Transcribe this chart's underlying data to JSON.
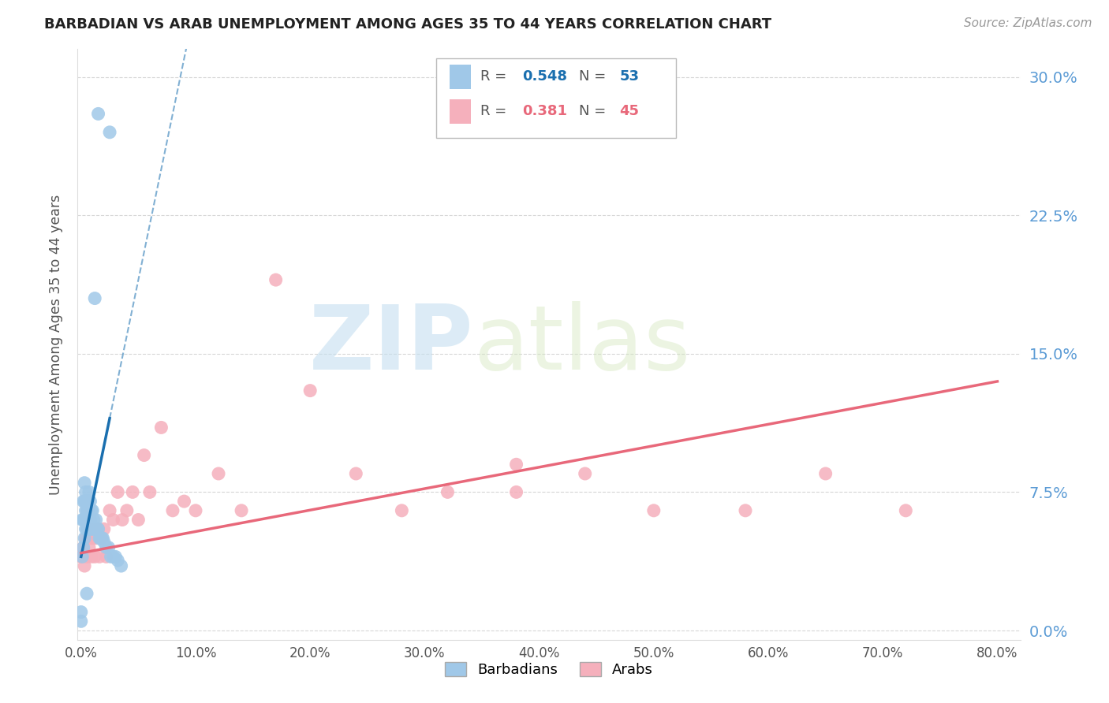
{
  "title": "BARBADIAN VS ARAB UNEMPLOYMENT AMONG AGES 35 TO 44 YEARS CORRELATION CHART",
  "source": "Source: ZipAtlas.com",
  "ylabel": "Unemployment Among Ages 35 to 44 years",
  "xlim": [
    -0.003,
    0.82
  ],
  "ylim": [
    -0.005,
    0.315
  ],
  "yticks": [
    0.0,
    0.075,
    0.15,
    0.225,
    0.3
  ],
  "ytick_labels": [
    "0.0%",
    "7.5%",
    "15.0%",
    "22.5%",
    "30.0%"
  ],
  "xticks": [
    0.0,
    0.1,
    0.2,
    0.3,
    0.4,
    0.5,
    0.6,
    0.7,
    0.8
  ],
  "xtick_labels": [
    "0.0%",
    "10.0%",
    "20.0%",
    "30.0%",
    "40.0%",
    "50.0%",
    "60.0%",
    "70.0%",
    "80.0%"
  ],
  "barbadian_color": "#a0c8e8",
  "arab_color": "#f5b0bc",
  "barbadian_trend_color": "#1a6faf",
  "arab_trend_color": "#e8687a",
  "R_barbadian": 0.548,
  "N_barbadian": 53,
  "R_arab": 0.381,
  "N_arab": 45,
  "watermark_zip": "ZIP",
  "watermark_atlas": "atlas",
  "background": "#ffffff",
  "barbadian_x": [
    0.0,
    0.0,
    0.001,
    0.001,
    0.002,
    0.002,
    0.002,
    0.003,
    0.003,
    0.003,
    0.003,
    0.004,
    0.004,
    0.004,
    0.004,
    0.005,
    0.005,
    0.005,
    0.005,
    0.006,
    0.006,
    0.006,
    0.006,
    0.007,
    0.007,
    0.007,
    0.008,
    0.008,
    0.009,
    0.009,
    0.01,
    0.01,
    0.011,
    0.012,
    0.013,
    0.014,
    0.015,
    0.016,
    0.017,
    0.018,
    0.019,
    0.02,
    0.022,
    0.024,
    0.026,
    0.028,
    0.03,
    0.032,
    0.035,
    0.012,
    0.015,
    0.025,
    0.005
  ],
  "barbadian_y": [
    0.005,
    0.01,
    0.04,
    0.06,
    0.045,
    0.06,
    0.07,
    0.05,
    0.06,
    0.07,
    0.08,
    0.055,
    0.065,
    0.07,
    0.075,
    0.055,
    0.06,
    0.065,
    0.07,
    0.055,
    0.06,
    0.065,
    0.07,
    0.055,
    0.06,
    0.075,
    0.06,
    0.07,
    0.055,
    0.065,
    0.055,
    0.065,
    0.06,
    0.055,
    0.06,
    0.055,
    0.055,
    0.05,
    0.05,
    0.05,
    0.05,
    0.048,
    0.045,
    0.045,
    0.04,
    0.04,
    0.04,
    0.038,
    0.035,
    0.18,
    0.28,
    0.27,
    0.02
  ],
  "arab_x": [
    0.0,
    0.002,
    0.003,
    0.004,
    0.005,
    0.006,
    0.007,
    0.008,
    0.009,
    0.01,
    0.011,
    0.012,
    0.013,
    0.015,
    0.016,
    0.018,
    0.02,
    0.022,
    0.025,
    0.028,
    0.032,
    0.036,
    0.04,
    0.045,
    0.05,
    0.055,
    0.06,
    0.07,
    0.08,
    0.09,
    0.1,
    0.12,
    0.14,
    0.17,
    0.2,
    0.24,
    0.28,
    0.32,
    0.38,
    0.44,
    0.5,
    0.58,
    0.65,
    0.72,
    0.38
  ],
  "arab_y": [
    0.04,
    0.045,
    0.035,
    0.05,
    0.04,
    0.05,
    0.045,
    0.055,
    0.04,
    0.05,
    0.055,
    0.04,
    0.05,
    0.055,
    0.04,
    0.05,
    0.055,
    0.04,
    0.065,
    0.06,
    0.075,
    0.06,
    0.065,
    0.075,
    0.06,
    0.095,
    0.075,
    0.11,
    0.065,
    0.07,
    0.065,
    0.085,
    0.065,
    0.19,
    0.13,
    0.085,
    0.065,
    0.075,
    0.075,
    0.085,
    0.065,
    0.065,
    0.085,
    0.065,
    0.09
  ],
  "barb_trend_x0": 0.0,
  "barb_trend_y0": 0.04,
  "barb_trend_x1": 0.025,
  "barb_trend_y1": 0.115,
  "barb_trend_solid_end": 0.025,
  "barb_trend_dashed_end": 0.18,
  "arab_trend_x0": 0.0,
  "arab_trend_y0": 0.042,
  "arab_trend_x1": 0.8,
  "arab_trend_y1": 0.135
}
